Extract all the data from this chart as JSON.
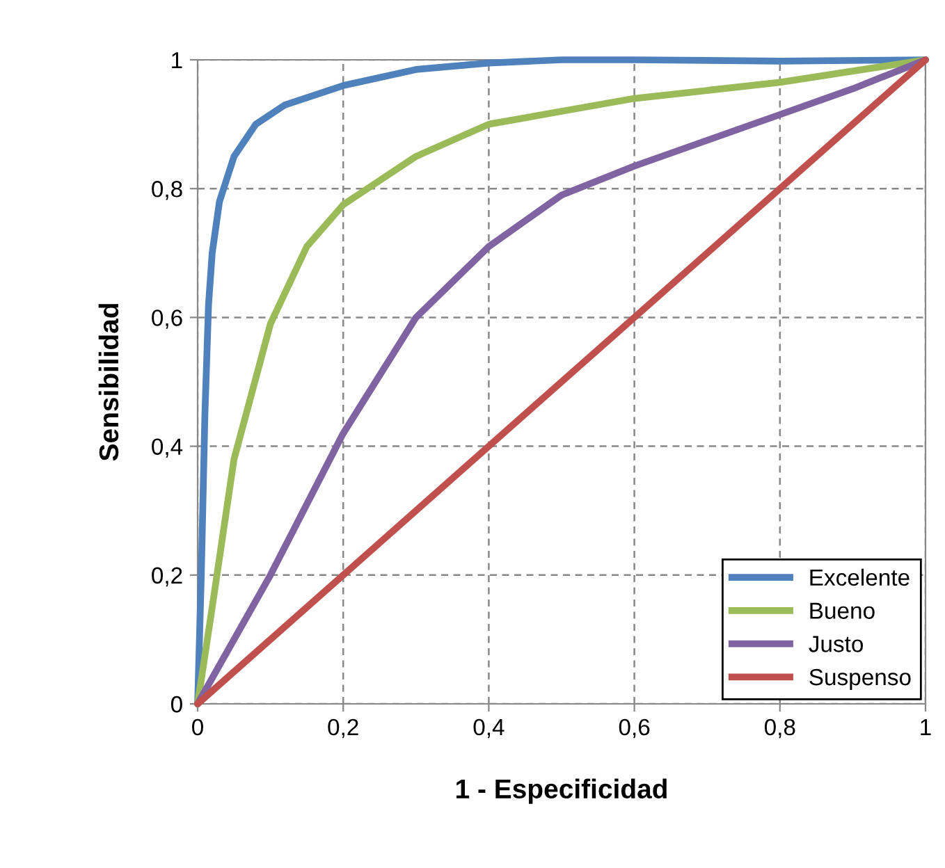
{
  "chart_data": {
    "type": "line",
    "xlabel": "1 - Especificidad",
    "ylabel": "Sensibilidad",
    "series": [
      {
        "name": "Excelente",
        "color": "#4f81bd",
        "x": [
          0,
          0.005,
          0.01,
          0.015,
          0.02,
          0.03,
          0.05,
          0.08,
          0.12,
          0.2,
          0.3,
          0.4,
          0.5,
          0.6,
          0.8,
          1
        ],
        "values": [
          0,
          0.2,
          0.45,
          0.62,
          0.7,
          0.78,
          0.85,
          0.9,
          0.93,
          0.96,
          0.985,
          0.995,
          1,
          1,
          0.998,
          1
        ]
      },
      {
        "name": "Bueno",
        "color": "#9bbb59",
        "x": [
          0,
          0.02,
          0.05,
          0.1,
          0.15,
          0.2,
          0.3,
          0.4,
          0.5,
          0.6,
          0.8,
          1
        ],
        "values": [
          0,
          0.15,
          0.38,
          0.59,
          0.71,
          0.775,
          0.85,
          0.9,
          0.92,
          0.94,
          0.965,
          1
        ]
      },
      {
        "name": "Justo",
        "color": "#8064a2",
        "x": [
          0,
          0.1,
          0.2,
          0.3,
          0.4,
          0.5,
          0.6,
          0.7,
          0.8,
          0.9,
          1
        ],
        "values": [
          0,
          0.2,
          0.42,
          0.6,
          0.71,
          0.79,
          0.835,
          0.875,
          0.915,
          0.955,
          1
        ]
      },
      {
        "name": "Suspenso",
        "color": "#c0504d",
        "x": [
          0,
          1
        ],
        "values": [
          0,
          1
        ]
      }
    ],
    "xlim": [
      0,
      1
    ],
    "ylim": [
      0,
      1
    ],
    "xticks": [
      0,
      {
        "value": 0.2,
        "label": "0,2"
      },
      {
        "value": 0.4,
        "label": "0,4"
      },
      {
        "value": 0.6,
        "label": "0,6"
      },
      {
        "value": 0.8,
        "label": "0,8"
      },
      1
    ],
    "yticks": [
      0,
      {
        "value": 0.2,
        "label": "0,2"
      },
      {
        "value": 0.4,
        "label": "0,4"
      },
      {
        "value": 0.6,
        "label": "0,6"
      },
      {
        "value": 0.8,
        "label": "0,8"
      },
      1
    ],
    "grid": true,
    "legend": "bottom right",
    "line_style": "solid",
    "marker": "none"
  }
}
